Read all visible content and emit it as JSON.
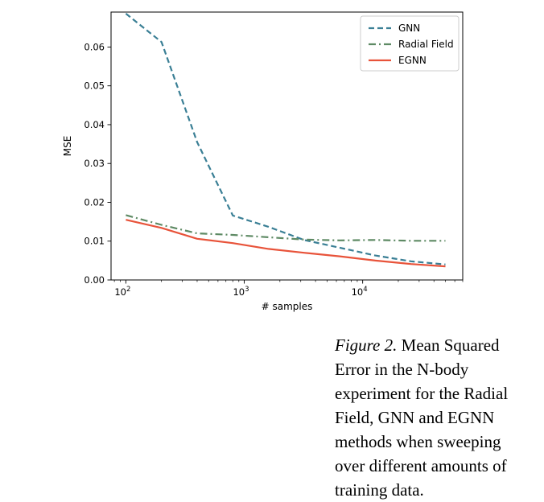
{
  "chart_data": {
    "type": "line",
    "xscale": "log",
    "xlabel": "# samples",
    "ylabel": "MSE",
    "xlim": [
      75,
      70000
    ],
    "ylim": [
      0,
      0.069
    ],
    "x_ticks": [
      {
        "value": 100,
        "base": "10",
        "exp": "2"
      },
      {
        "value": 1000,
        "base": "10",
        "exp": "3"
      },
      {
        "value": 10000,
        "base": "10",
        "exp": "4"
      }
    ],
    "y_ticks": [
      0.0,
      0.01,
      0.02,
      0.03,
      0.04,
      0.05,
      0.06
    ],
    "y_tick_labels": [
      "0.00",
      "0.01",
      "0.02",
      "0.03",
      "0.04",
      "0.05",
      "0.06"
    ],
    "legend_position": "top-right",
    "series": [
      {
        "name": "GNN",
        "color": "#3a7f95",
        "dash": "dashed",
        "x": [
          100,
          200,
          400,
          800,
          1600,
          3200,
          6400,
          12800,
          25600,
          50000
        ],
        "y": [
          0.0686,
          0.0613,
          0.0355,
          0.0166,
          0.0137,
          0.0103,
          0.0083,
          0.0063,
          0.0048,
          0.004
        ]
      },
      {
        "name": "Radial Field",
        "color": "#5e8a64",
        "dash": "dashdot",
        "x": [
          100,
          200,
          400,
          800,
          1600,
          3200,
          6400,
          12800,
          25600,
          50000
        ],
        "y": [
          0.0167,
          0.0142,
          0.012,
          0.0116,
          0.011,
          0.0104,
          0.0102,
          0.0103,
          0.0101,
          0.0101
        ]
      },
      {
        "name": "EGNN",
        "color": "#e8533a",
        "dash": "solid",
        "x": [
          100,
          200,
          400,
          800,
          1600,
          3200,
          6400,
          12800,
          25600,
          50000
        ],
        "y": [
          0.0155,
          0.0134,
          0.0106,
          0.0095,
          0.008,
          0.007,
          0.0061,
          0.005,
          0.0041,
          0.0035
        ]
      }
    ]
  },
  "caption": {
    "label": "Figure 2.",
    "text": " Mean Squared Error in the N-body experiment for the Radial Field, GNN and EGNN methods when sweeping over different amounts of training data."
  }
}
